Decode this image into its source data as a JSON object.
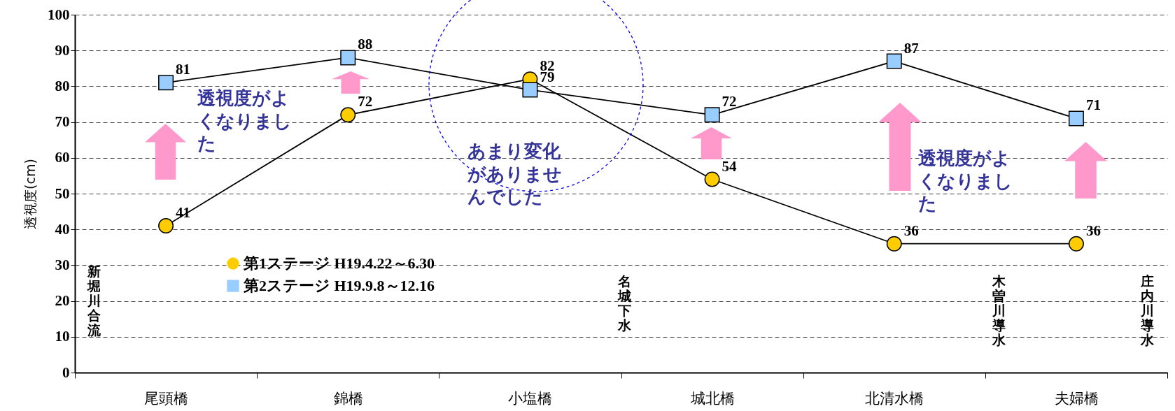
{
  "chart_data": {
    "type": "line",
    "ylabel": "透視度(cm)",
    "categories": [
      "尾頭橋",
      "錦橋",
      "小塩橋",
      "城北橋",
      "北清水橋",
      "夫婦橋"
    ],
    "series": [
      {
        "name": "第1ステージ H19.4.22～6.30",
        "color": "#ffcc00",
        "marker": "circle",
        "values": [
          41,
          72,
          82,
          54,
          36,
          36
        ]
      },
      {
        "name": "第2ステージ H19.9.8～12.16",
        "color": "#99ccff",
        "marker": "square",
        "values": [
          81,
          88,
          79,
          72,
          87,
          71
        ]
      }
    ],
    "ylim": [
      0,
      100
    ],
    "yticks": [
      0,
      10,
      20,
      30,
      40,
      50,
      60,
      70,
      80,
      90,
      100
    ],
    "grid": "y",
    "legend": "bottom left",
    "data_labels": true,
    "line_style": "solid",
    "annotations": [
      "透視度がよくなりました",
      "あまり変化がありませんでした",
      "透視度がよくなりました",
      "新堀川合流",
      "名城下水",
      "木曽川導水",
      "庄内川導水"
    ]
  }
}
